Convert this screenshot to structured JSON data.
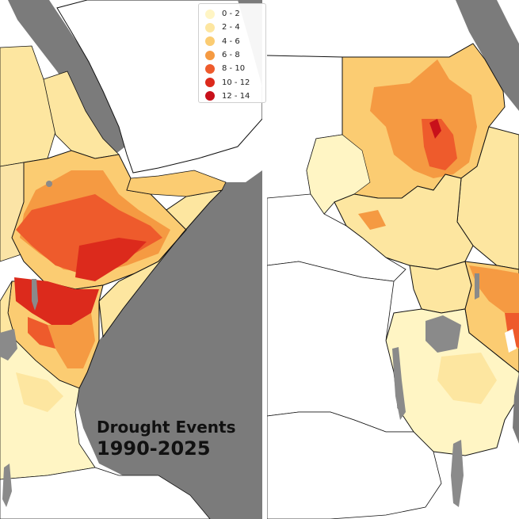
{
  "title": {
    "line1": "Drought Events",
    "line2": "1990-2025"
  },
  "legend": {
    "placement": "top-right of left panel",
    "items": [
      {
        "label": "0 - 2",
        "color": "#fff5c4"
      },
      {
        "label": "2 - 4",
        "color": "#fde6a0"
      },
      {
        "label": "4 - 6",
        "color": "#fbcc72"
      },
      {
        "label": "6 - 8",
        "color": "#f59a42"
      },
      {
        "label": "8 - 10",
        "color": "#ee5b2c"
      },
      {
        "label": "10 - 12",
        "color": "#dc2a1c"
      },
      {
        "label": "12 - 14",
        "color": "#c8101a"
      }
    ]
  },
  "colors": {
    "sea": "#7b7b7b",
    "outside_land": "#ffffff",
    "borders": "#111111",
    "lakes": "#8a8a8a"
  }
}
